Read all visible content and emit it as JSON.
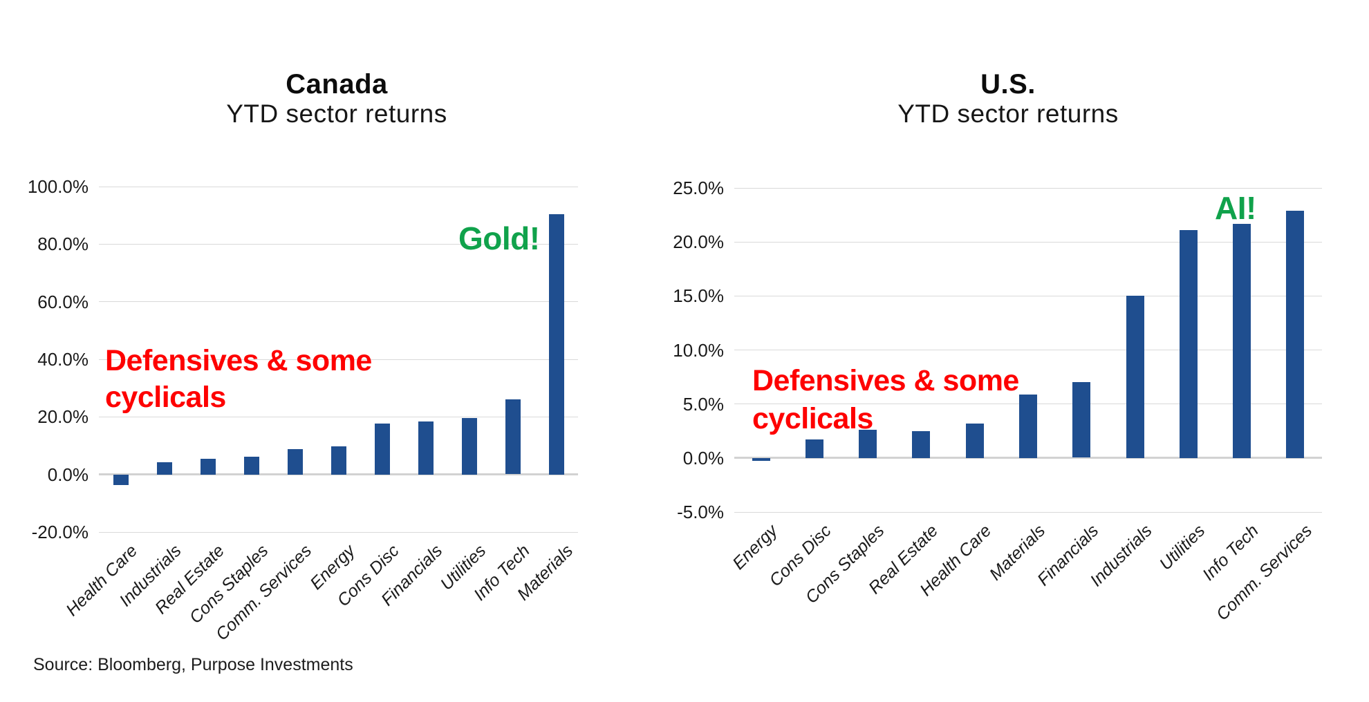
{
  "page": {
    "source_note": "Source: Bloomberg, Purpose Investments",
    "background": "#ffffff"
  },
  "colors": {
    "bar": "#1f4e8f",
    "annotation_red": "#fe0000",
    "annotation_green": "#10a24b",
    "gridline": "#d9d9d9",
    "zero_line": "#d2d2d2",
    "axis_text": "#1a1a1a",
    "title_text": "#0c0c0c"
  },
  "chart_data": [
    {
      "type": "bar",
      "title": "Canada",
      "subtitle": "YTD sector returns",
      "categories": [
        "Health Care",
        "Industrials",
        "Real Estate",
        "Cons Staples",
        "Comm. Services",
        "Energy",
        "Cons Disc",
        "Financials",
        "Utilities",
        "Info Tech",
        "Materials"
      ],
      "values": [
        -3.6,
        4.3,
        5.5,
        6.2,
        8.8,
        9.8,
        17.8,
        18.5,
        19.7,
        26.0,
        90.5
      ],
      "ylim": [
        -20,
        100
      ],
      "ytick_step": 20,
      "ytick_format": "0.0%",
      "grid": true,
      "legend": false,
      "annotations": [
        {
          "id": "defensives-cyclicals",
          "lines": [
            "Defensives & some",
            "cyclicals"
          ],
          "color_key": "annotation_red"
        },
        {
          "id": "gold",
          "lines": [
            "Gold!"
          ],
          "color_key": "annotation_green"
        }
      ]
    },
    {
      "type": "bar",
      "title": "U.S.",
      "subtitle": "YTD sector returns",
      "categories": [
        "Energy",
        "Cons Disc",
        "Cons Staples",
        "Real Estate",
        "Health Care",
        "Materials",
        "Financials",
        "Industrials",
        "Utilities",
        "Info Tech",
        "Comm. Services"
      ],
      "values": [
        -0.25,
        1.7,
        2.6,
        2.5,
        3.2,
        5.9,
        7.0,
        15.0,
        21.1,
        21.7,
        22.9
      ],
      "ylim": [
        -5,
        25
      ],
      "ytick_step": 5,
      "ytick_format": "0.0%",
      "grid": true,
      "legend": false,
      "annotations": [
        {
          "id": "defensives-cyclicals",
          "lines": [
            "Defensives & some",
            "cyclicals"
          ],
          "color_key": "annotation_red"
        },
        {
          "id": "ai",
          "lines": [
            "AI!"
          ],
          "color_key": "annotation_green"
        }
      ]
    }
  ]
}
